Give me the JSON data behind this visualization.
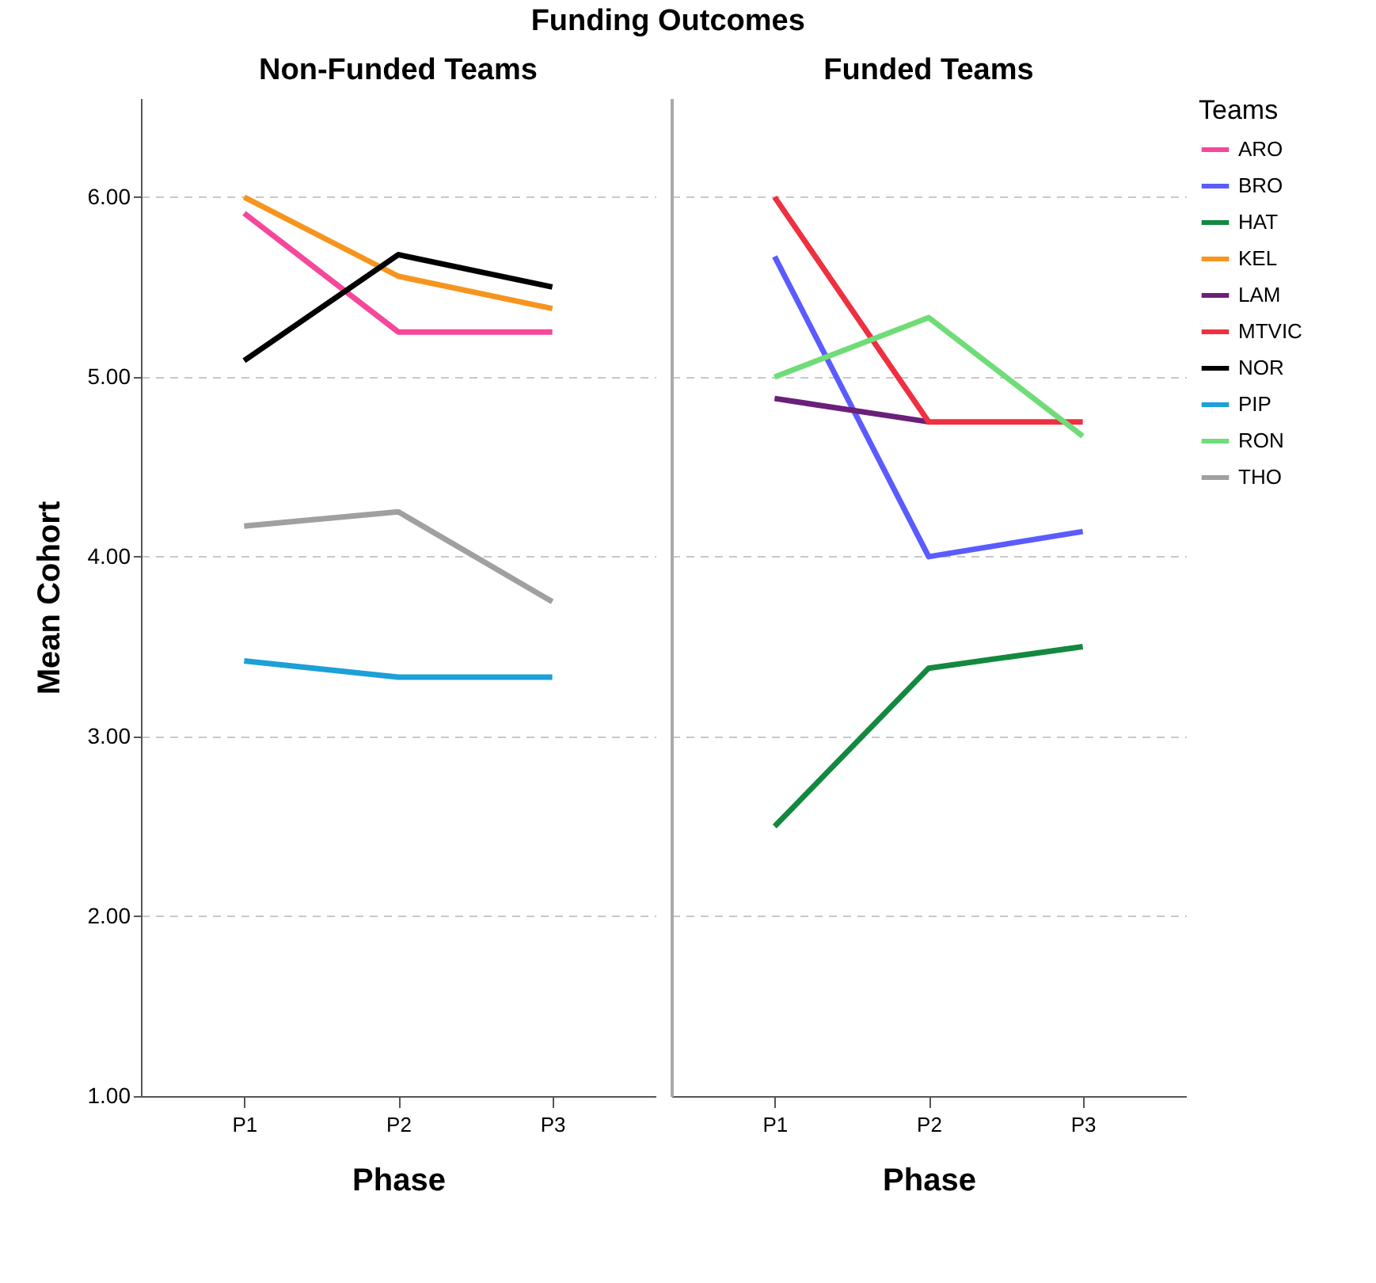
{
  "chart_data": [
    {
      "type": "line",
      "title": "Funding Outcomes",
      "subtitle": "Non-Funded Teams",
      "xlabel": "Phase",
      "ylabel": "Mean Cohort",
      "categories": [
        "P1",
        "P2",
        "P3"
      ],
      "ylim": [
        1,
        6.55
      ],
      "yticks": [
        {
          "value": 1,
          "label": "1.00"
        },
        {
          "value": 2,
          "label": "2.00"
        },
        {
          "value": 3,
          "label": "3.00"
        },
        {
          "value": 4,
          "label": "4.00"
        },
        {
          "value": 5,
          "label": "5.00"
        },
        {
          "value": 6,
          "label": "6.00"
        }
      ],
      "grid": "y",
      "legend": "right",
      "line_style": "solid",
      "series": [
        {
          "name": "ARO",
          "color": "#f5479b",
          "values": [
            5.91,
            5.25,
            5.25
          ]
        },
        {
          "name": "KEL",
          "color": "#f7941d",
          "values": [
            6.0,
            5.56,
            5.38
          ]
        },
        {
          "name": "NOR",
          "color": "#000000",
          "values": [
            5.09,
            5.68,
            5.5
          ]
        },
        {
          "name": "PIP",
          "color": "#1ba0d7",
          "values": [
            3.42,
            3.33,
            3.33
          ]
        },
        {
          "name": "THO",
          "color": "#a0a0a0",
          "values": [
            4.17,
            4.25,
            3.75
          ]
        }
      ]
    },
    {
      "type": "line",
      "subtitle": "Funded Teams",
      "xlabel": "Phase",
      "legend_title": "Teams",
      "categories": [
        "P1",
        "P2",
        "P3"
      ],
      "ylim": [
        1,
        6.55
      ],
      "yticks": [
        1,
        2,
        3,
        4,
        5,
        6
      ],
      "grid": "y",
      "legend": "right",
      "tick_labels": "x",
      "line_style": "solid",
      "series": [
        {
          "name": "BRO",
          "color": "#5b5bff",
          "values": [
            5.67,
            4.0,
            4.14
          ]
        },
        {
          "name": "HAT",
          "color": "#13893f",
          "values": [
            2.5,
            3.38,
            3.5
          ]
        },
        {
          "name": "LAM",
          "color": "#6a1f7a",
          "values": [
            4.88,
            4.75,
            null
          ]
        },
        {
          "name": "MTVIC",
          "color": "#ee3040",
          "values": [
            6.0,
            4.75,
            4.75
          ]
        },
        {
          "name": "RON",
          "color": "#6fdc78",
          "values": [
            5.0,
            5.33,
            4.67
          ]
        }
      ]
    }
  ]
}
